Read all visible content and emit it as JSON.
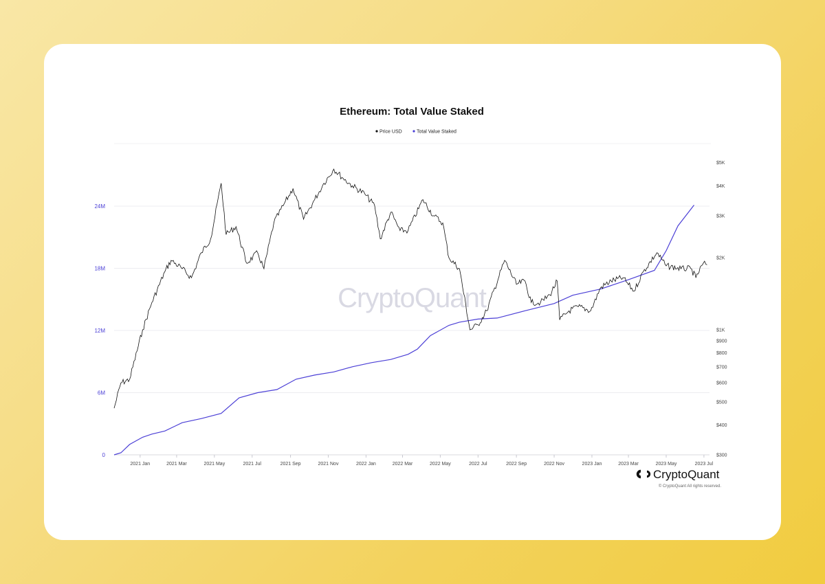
{
  "colors": {
    "price": "#111111",
    "staked": "#4b3fd6",
    "grid": "#ececf0",
    "left_axis": "#4b3fd6"
  },
  "brand": {
    "watermark": "CryptoQuant",
    "name": "CryptoQuant",
    "copyright": "© CryptoQuant All rights reserved.",
    "logo_icon": "cryptoquant-logo-icon"
  },
  "chart_data": {
    "type": "line",
    "title": "Ethereum: Total Value Staked",
    "legend": [
      {
        "name": "Price USD",
        "color": "#111111"
      },
      {
        "name": "Total Value Staked",
        "color": "#4b3fd6"
      }
    ],
    "legend_position": "top-center",
    "x": [
      "2020-11-20",
      "2021-01",
      "2021-03",
      "2021-05",
      "2021-07",
      "2021-09",
      "2021-11",
      "2022-01",
      "2022-03",
      "2022-05",
      "2022-07",
      "2022-09",
      "2022-11",
      "2023-01",
      "2023-03",
      "2023-05",
      "2023-07"
    ],
    "x_tick_labels": [
      "2021 Jan",
      "2021 Mar",
      "2021 May",
      "2021 Jul",
      "2021 Sep",
      "2021 Nov",
      "2022 Jan",
      "2022 Mar",
      "2022 May",
      "2022 Jul",
      "2022 Sep",
      "2022 Nov",
      "2023 Jan",
      "2023 Mar",
      "2023 May",
      "2023 Jul"
    ],
    "y_left": {
      "label": "",
      "ticks": [
        "0",
        "6M",
        "12M",
        "18M",
        "24M"
      ],
      "range": [
        0,
        24000000
      ]
    },
    "y_right": {
      "label": "",
      "scale": "log",
      "ticks": [
        "$300",
        "$400",
        "$500",
        "$600",
        "$700",
        "$800",
        "$900",
        "$1K",
        "$2K",
        "$3K",
        "$4K",
        "$5K"
      ]
    },
    "grid": "horizontal",
    "series": [
      {
        "name": "Price USD",
        "axis": "right",
        "points": [
          [
            "2020-11-20",
            470
          ],
          [
            "2020-12-01",
            600
          ],
          [
            "2020-12-15",
            620
          ],
          [
            "2021-01-05",
            1000
          ],
          [
            "2021-01-20",
            1300
          ],
          [
            "2021-02-10",
            1750
          ],
          [
            "2021-02-20",
            1950
          ],
          [
            "2021-03-10",
            1800
          ],
          [
            "2021-03-25",
            1650
          ],
          [
            "2021-04-10",
            2100
          ],
          [
            "2021-04-25",
            2400
          ],
          [
            "2021-05-12",
            4100
          ],
          [
            "2021-05-20",
            2500
          ],
          [
            "2021-06-05",
            2700
          ],
          [
            "2021-06-22",
            1900
          ],
          [
            "2021-07-10",
            2100
          ],
          [
            "2021-07-20",
            1800
          ],
          [
            "2021-08-05",
            2800
          ],
          [
            "2021-08-20",
            3300
          ],
          [
            "2021-09-05",
            3900
          ],
          [
            "2021-09-22",
            2900
          ],
          [
            "2021-10-10",
            3500
          ],
          [
            "2021-10-25",
            4100
          ],
          [
            "2021-11-10",
            4700
          ],
          [
            "2021-11-25",
            4300
          ],
          [
            "2021-12-10",
            4000
          ],
          [
            "2021-12-30",
            3700
          ],
          [
            "2022-01-15",
            3300
          ],
          [
            "2022-01-24",
            2400
          ],
          [
            "2022-02-10",
            3100
          ],
          [
            "2022-02-25",
            2600
          ],
          [
            "2022-03-10",
            2600
          ],
          [
            "2022-04-03",
            3500
          ],
          [
            "2022-04-20",
            3000
          ],
          [
            "2022-05-05",
            2800
          ],
          [
            "2022-05-15",
            2000
          ],
          [
            "2022-06-01",
            1800
          ],
          [
            "2022-06-18",
            1000
          ],
          [
            "2022-07-01",
            1050
          ],
          [
            "2022-07-15",
            1200
          ],
          [
            "2022-08-13",
            1950
          ],
          [
            "2022-09-01",
            1550
          ],
          [
            "2022-09-15",
            1600
          ],
          [
            "2022-09-25",
            1300
          ],
          [
            "2022-10-10",
            1300
          ],
          [
            "2022-10-25",
            1400
          ],
          [
            "2022-11-06",
            1600
          ],
          [
            "2022-11-10",
            1100
          ],
          [
            "2022-11-25",
            1200
          ],
          [
            "2022-12-10",
            1250
          ],
          [
            "2022-12-30",
            1200
          ],
          [
            "2023-01-15",
            1500
          ],
          [
            "2023-02-01",
            1600
          ],
          [
            "2023-02-20",
            1650
          ],
          [
            "2023-03-10",
            1450
          ],
          [
            "2023-03-25",
            1750
          ],
          [
            "2023-04-16",
            2100
          ],
          [
            "2023-05-01",
            1850
          ],
          [
            "2023-05-25",
            1800
          ],
          [
            "2023-06-10",
            1800
          ],
          [
            "2023-06-18",
            1650
          ],
          [
            "2023-06-30",
            1900
          ],
          [
            "2023-07-06",
            1870
          ]
        ]
      },
      {
        "name": "Total Value Staked",
        "axis": "left",
        "points": [
          [
            "2020-11-20",
            0
          ],
          [
            "2020-12-01",
            200000
          ],
          [
            "2020-12-15",
            1000000
          ],
          [
            "2021-01-05",
            1700000
          ],
          [
            "2021-01-20",
            2000000
          ],
          [
            "2021-02-10",
            2300000
          ],
          [
            "2021-03-10",
            3100000
          ],
          [
            "2021-04-10",
            3500000
          ],
          [
            "2021-05-12",
            4000000
          ],
          [
            "2021-06-10",
            5500000
          ],
          [
            "2021-07-10",
            6000000
          ],
          [
            "2021-08-10",
            6300000
          ],
          [
            "2021-09-10",
            7300000
          ],
          [
            "2021-10-10",
            7700000
          ],
          [
            "2021-11-10",
            8000000
          ],
          [
            "2021-12-10",
            8500000
          ],
          [
            "2022-01-10",
            8900000
          ],
          [
            "2022-02-10",
            9200000
          ],
          [
            "2022-03-10",
            9700000
          ],
          [
            "2022-03-25",
            10200000
          ],
          [
            "2022-04-15",
            11500000
          ],
          [
            "2022-05-15",
            12500000
          ],
          [
            "2022-06-01",
            12800000
          ],
          [
            "2022-07-01",
            13100000
          ],
          [
            "2022-08-01",
            13200000
          ],
          [
            "2022-09-15",
            13900000
          ],
          [
            "2022-11-01",
            14600000
          ],
          [
            "2022-12-01",
            15400000
          ],
          [
            "2023-01-15",
            16000000
          ],
          [
            "2023-03-01",
            16900000
          ],
          [
            "2023-04-12",
            17800000
          ],
          [
            "2023-05-01",
            19700000
          ],
          [
            "2023-05-20",
            22100000
          ],
          [
            "2023-06-15",
            24100000
          ]
        ]
      }
    ]
  }
}
